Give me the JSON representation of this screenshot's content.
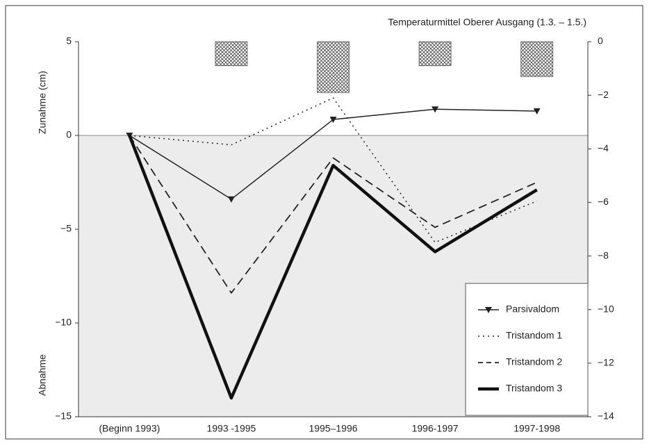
{
  "chart_data": {
    "type": "line",
    "categories": [
      "(Beginn 1993)",
      "1993 -1995",
      "1995–1996",
      "1996-1997",
      "1997-1998"
    ],
    "ylim": [
      -15,
      5
    ],
    "yticks": [
      5,
      0,
      {
        "value": -5,
        "label": "−5"
      },
      {
        "value": -10,
        "label": "−10"
      },
      {
        "value": -15,
        "label": "−15"
      }
    ],
    "y2lim": [
      -14,
      0
    ],
    "y2ticks": [
      0,
      {
        "value": -2,
        "label": "−2"
      },
      {
        "value": -4,
        "label": "−4"
      },
      {
        "value": -6,
        "label": "−6"
      },
      {
        "value": -8,
        "label": "−8"
      },
      {
        "value": -10,
        "label": "−10"
      },
      {
        "value": -12,
        "label": "−12"
      },
      {
        "value": -14,
        "label": "−14"
      }
    ],
    "ylabel_positive": "Zunahme  (cm)",
    "ylabel_negative": "Abnahme",
    "series": [
      {
        "name": "Parsivaldom",
        "color": "#222222",
        "style": "solid",
        "width": 1.5,
        "marker": "triangle-down",
        "values": [
          0,
          -3.4,
          0.85,
          1.4,
          1.3
        ]
      },
      {
        "name": "Tristandom 1",
        "color": "#222222",
        "style": "dotted",
        "width": 1.5,
        "values": [
          0,
          -0.5,
          2.0,
          -5.7,
          -3.5
        ]
      },
      {
        "name": "Tristandom 2",
        "color": "#222222",
        "style": "dashed",
        "width": 1.8,
        "values": [
          0,
          -8.4,
          -1.2,
          -4.9,
          -2.5
        ]
      },
      {
        "name": "Tristandom 3",
        "color": "#111111",
        "style": "solid",
        "width": 4.5,
        "values": [
          0,
          -14.0,
          -1.6,
          -6.2,
          -2.9
        ]
      },
      {
        "name": "Temperaturmittel Oberer Ausgang (1.3. – 1.5.)",
        "type": "bar",
        "axis": "y2",
        "pattern": "crosshatch",
        "values": [
          null,
          -0.9,
          -1.9,
          -0.9,
          -1.3
        ]
      }
    ],
    "legend": "lower right"
  }
}
